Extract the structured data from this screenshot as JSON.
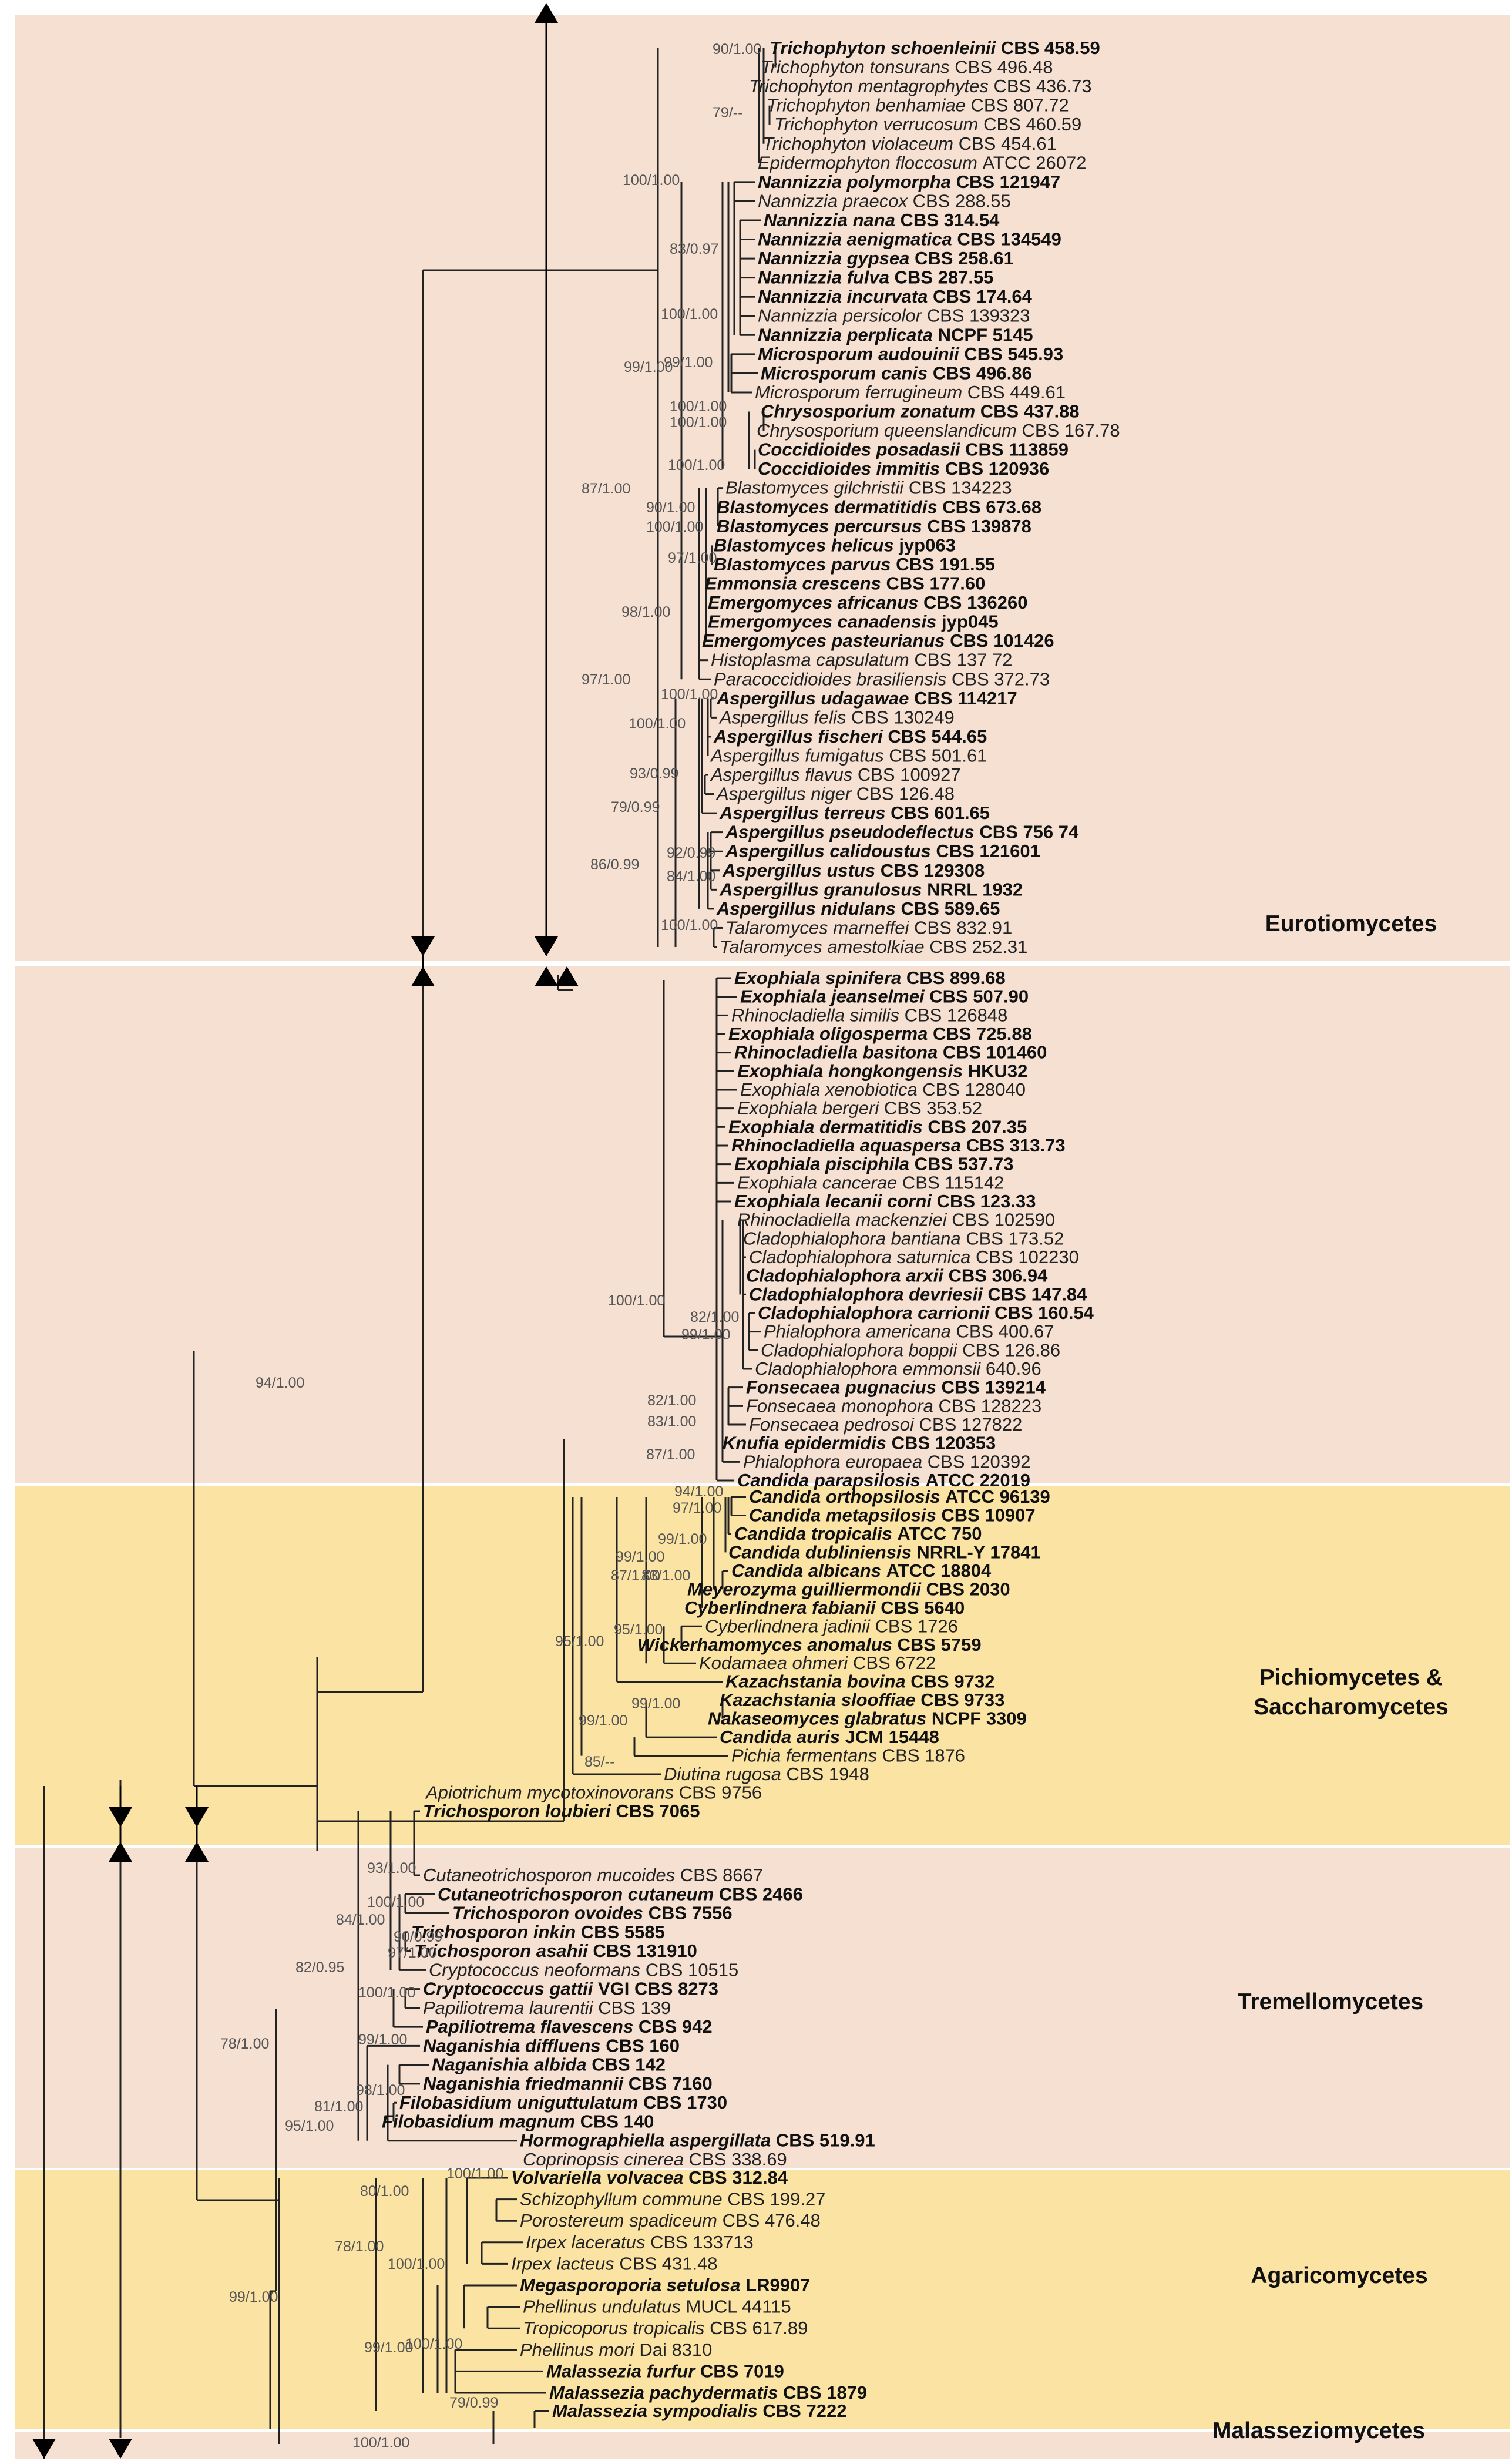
{
  "figure": {
    "type": "phylogenetic-tree",
    "colors": {
      "band_pink": "#f5e0d2",
      "band_yellow": "#fbe3a3",
      "line": "#222222"
    }
  },
  "clades": [
    {
      "name": "Eurotiomycetes",
      "color": "pink"
    },
    {
      "name": "Pichiomycetes &",
      "name2": "Saccharomycetes",
      "color": "yellow"
    },
    {
      "name": "Tremellomycetes",
      "color": "pink"
    },
    {
      "name": "Agaricomycetes",
      "color": "yellow"
    },
    {
      "name": "Malasseziomycetes",
      "color": "pink"
    }
  ],
  "taxa": [
    {
      "genus": "Trichophyton schoenleinii",
      "strain": "CBS 458.59",
      "bold": true
    },
    {
      "genus": "Trichophyton tonsurans",
      "strain": "CBS 496.48",
      "bold": false
    },
    {
      "genus": "Trichophyton mentagrophytes",
      "strain": "CBS 436.73",
      "bold": false
    },
    {
      "genus": "Trichophyton benhamiae",
      "strain": "CBS 807.72",
      "bold": false
    },
    {
      "genus": "Trichophyton verrucosum",
      "strain": "CBS 460.59",
      "bold": false
    },
    {
      "genus": "Trichophyton violaceum",
      "strain": "CBS 454.61",
      "bold": false
    },
    {
      "genus": "Epidermophyton floccosum",
      "strain": "ATCC 26072",
      "bold": false
    },
    {
      "genus": "Nannizzia polymorpha",
      "strain": "CBS 121947",
      "bold": true
    },
    {
      "genus": "Nannizzia praecox",
      "strain": "CBS 288.55",
      "bold": false
    },
    {
      "genus": "Nannizzia nana",
      "strain": "CBS 314.54",
      "bold": true
    },
    {
      "genus": "Nannizzia aenigmatica",
      "strain": "CBS 134549",
      "bold": true
    },
    {
      "genus": "Nannizzia gypsea",
      "strain": "CBS 258.61",
      "bold": true
    },
    {
      "genus": "Nannizzia fulva",
      "strain": "CBS 287.55",
      "bold": true
    },
    {
      "genus": "Nannizzia incurvata",
      "strain": "CBS 174.64",
      "bold": true
    },
    {
      "genus": "Nannizzia persicolor",
      "strain": "CBS 139323",
      "bold": false
    },
    {
      "genus": "Nannizzia perplicata",
      "strain": "NCPF 5145",
      "bold": true
    },
    {
      "genus": "Microsporum audouinii",
      "strain": "CBS 545.93",
      "bold": true
    },
    {
      "genus": "Microsporum canis",
      "strain": "CBS 496.86",
      "bold": true
    },
    {
      "genus": "Microsporum ferrugineum",
      "strain": "CBS 449.61",
      "bold": false
    },
    {
      "genus": "Chrysosporium zonatum",
      "strain": "CBS 437.88",
      "bold": true
    },
    {
      "genus": "Chrysosporium queenslandicum",
      "strain": "CBS 167.78",
      "bold": false
    },
    {
      "genus": "Coccidioides posadasii",
      "strain": "CBS 113859",
      "bold": true
    },
    {
      "genus": "Coccidioides immitis",
      "strain": "CBS 120936",
      "bold": true
    },
    {
      "genus": "Blastomyces gilchristii",
      "strain": "CBS 134223",
      "bold": false
    },
    {
      "genus": "Blastomyces dermatitidis",
      "strain": "CBS 673.68",
      "bold": true
    },
    {
      "genus": "Blastomyces percursus",
      "strain": "CBS 139878",
      "bold": true
    },
    {
      "genus": "Blastomyces helicus",
      "strain": "jyp063",
      "bold": true
    },
    {
      "genus": "Blastomyces parvus",
      "strain": "CBS 191.55",
      "bold": true
    },
    {
      "genus": "Emmonsia crescens",
      "strain": "CBS 177.60",
      "bold": true
    },
    {
      "genus": "Emergomyces africanus",
      "strain": "CBS 136260",
      "bold": true
    },
    {
      "genus": "Emergomyces canadensis",
      "strain": "jyp045",
      "bold": true
    },
    {
      "genus": "Emergomyces pasteurianus",
      "strain": "CBS 101426",
      "bold": true
    },
    {
      "genus": "Histoplasma capsulatum",
      "strain": "CBS 137 72",
      "bold": false
    },
    {
      "genus": "Paracoccidioides brasiliensis",
      "strain": "CBS 372.73",
      "bold": false
    },
    {
      "genus": "Aspergillus udagawae",
      "strain": "CBS 114217",
      "bold": true
    },
    {
      "genus": "Aspergillus felis",
      "strain": "CBS 130249",
      "bold": false
    },
    {
      "genus": "Aspergillus fischeri",
      "strain": "CBS 544.65",
      "bold": true
    },
    {
      "genus": "Aspergillus fumigatus",
      "strain": "CBS 501.61",
      "bold": false
    },
    {
      "genus": "Aspergillus flavus",
      "strain": "CBS 100927",
      "bold": false
    },
    {
      "genus": "Aspergillus niger",
      "strain": "CBS 126.48",
      "bold": false
    },
    {
      "genus": "Aspergillus terreus",
      "strain": "CBS 601.65",
      "bold": true
    },
    {
      "genus": "Aspergillus pseudodeflectus",
      "strain": "CBS 756 74",
      "bold": true
    },
    {
      "genus": "Aspergillus calidoustus",
      "strain": "CBS 121601",
      "bold": true
    },
    {
      "genus": "Aspergillus ustus",
      "strain": "CBS 129308",
      "bold": true
    },
    {
      "genus": "Aspergillus granulosus",
      "strain": "NRRL 1932",
      "bold": true
    },
    {
      "genus": "Aspergillus nidulans",
      "strain": "CBS 589.65",
      "bold": true
    },
    {
      "genus": "Talaromyces marneffei",
      "strain": "CBS 832.91",
      "bold": false
    },
    {
      "genus": "Talaromyces amestolkiae",
      "strain": "CBS 252.31",
      "bold": false
    },
    {
      "genus": "Exophiala spinifera",
      "strain": "CBS 899.68",
      "bold": true
    },
    {
      "genus": "Exophiala jeanselmei",
      "strain": "CBS 507.90",
      "bold": true
    },
    {
      "genus": "Rhinocladiella similis",
      "strain": "CBS 126848",
      "bold": false
    },
    {
      "genus": "Exophiala oligosperma",
      "strain": "CBS 725.88",
      "bold": true
    },
    {
      "genus": "Rhinocladiella basitona",
      "strain": "CBS 101460",
      "bold": true
    },
    {
      "genus": "Exophiala hongkongensis",
      "strain": "HKU32",
      "bold": true
    },
    {
      "genus": "Exophiala xenobiotica",
      "strain": "CBS 128040",
      "bold": false
    },
    {
      "genus": "Exophiala bergeri",
      "strain": "CBS 353.52",
      "bold": false
    },
    {
      "genus": "Exophiala dermatitidis",
      "strain": "CBS 207.35",
      "bold": true
    },
    {
      "genus": "Rhinocladiella aquaspersa",
      "strain": "CBS 313.73",
      "bold": true
    },
    {
      "genus": "Exophiala pisciphila",
      "strain": "CBS 537.73",
      "bold": true
    },
    {
      "genus": "Exophiala cancerae",
      "strain": "CBS 115142",
      "bold": false
    },
    {
      "genus": "Exophiala lecanii corni",
      "strain": "CBS 123.33",
      "bold": true
    },
    {
      "genus": "Rhinocladiella mackenziei",
      "strain": "CBS 102590",
      "bold": false
    },
    {
      "genus": "Cladophialophora bantiana",
      "strain": "CBS 173.52",
      "bold": false
    },
    {
      "genus": "Cladophialophora saturnica",
      "strain": "CBS 102230",
      "bold": false
    },
    {
      "genus": "Cladophialophora arxii",
      "strain": "CBS 306.94",
      "bold": true
    },
    {
      "genus": "Cladophialophora devriesii",
      "strain": "CBS 147.84",
      "bold": true
    },
    {
      "genus": "Cladophialophora carrionii",
      "strain": "CBS 160.54",
      "bold": true
    },
    {
      "genus": "Phialophora americana",
      "strain": "CBS 400.67",
      "bold": false
    },
    {
      "genus": "Cladophialophora boppii",
      "strain": "CBS 126.86",
      "bold": false
    },
    {
      "genus": "Cladophialophora emmonsii",
      "strain": "640.96",
      "bold": false
    },
    {
      "genus": "Fonsecaea pugnacius",
      "strain": "CBS 139214",
      "bold": true
    },
    {
      "genus": "Fonsecaea monophora",
      "strain": "CBS 128223",
      "bold": false
    },
    {
      "genus": "Fonsecaea pedrosoi",
      "strain": "CBS 127822",
      "bold": false
    },
    {
      "genus": "Knufia epidermidis",
      "strain": "CBS 120353",
      "bold": true
    },
    {
      "genus": "Phialophora europaea",
      "strain": "CBS 120392",
      "bold": false
    },
    {
      "genus": "Candida parapsilosis",
      "strain": "ATCC 22019",
      "bold": true
    },
    {
      "genus": "Candida orthopsilosis",
      "strain": "ATCC 96139",
      "bold": true
    },
    {
      "genus": "Candida metapsilosis",
      "strain": "CBS 10907",
      "bold": true
    },
    {
      "genus": "Candida tropicalis",
      "strain": "ATCC 750",
      "bold": true
    },
    {
      "genus": "Candida dubliniensis",
      "strain": "NRRL-Y 17841",
      "bold": true
    },
    {
      "genus": "Candida albicans",
      "strain": "ATCC 18804",
      "bold": true
    },
    {
      "genus": "Meyerozyma guilliermondii",
      "strain": "CBS 2030",
      "bold": true
    },
    {
      "genus": "Cyberlindnera fabianii",
      "strain": "CBS 5640",
      "bold": true
    },
    {
      "genus": "Cyberlindnera jadinii",
      "strain": "CBS 1726",
      "bold": false
    },
    {
      "genus": "Wickerhamomyces anomalus",
      "strain": "CBS 5759",
      "bold": true
    },
    {
      "genus": "Kodamaea ohmeri",
      "strain": "CBS 6722",
      "bold": false
    },
    {
      "genus": "Kazachstania bovina",
      "strain": "CBS 9732",
      "bold": true
    },
    {
      "genus": "Kazachstania slooffiae",
      "strain": "CBS 9733",
      "bold": true
    },
    {
      "genus": "Nakaseomyces glabratus",
      "strain": "NCPF 3309",
      "bold": true
    },
    {
      "genus": "Candida auris",
      "strain": "JCM 15448",
      "bold": true
    },
    {
      "genus": "Pichia fermentans",
      "strain": "CBS 1876",
      "bold": false
    },
    {
      "genus": "Diutina rugosa",
      "strain": "CBS 1948",
      "bold": false
    },
    {
      "genus": "Apiotrichum mycotoxinovorans",
      "strain": "CBS 9756",
      "bold": false
    },
    {
      "genus": "Trichosporon loubieri",
      "strain": "CBS 7065",
      "bold": true
    },
    {
      "genus": "Cutaneotrichosporon mucoides",
      "strain": "CBS 8667",
      "bold": false
    },
    {
      "genus": "Cutaneotrichosporon cutaneum",
      "strain": "CBS 2466",
      "bold": true
    },
    {
      "genus": "Trichosporon ovoides",
      "strain": "CBS 7556",
      "bold": true
    },
    {
      "genus": "Trichosporon inkin",
      "strain": "CBS 5585",
      "bold": true
    },
    {
      "genus": "Trichosporon asahii",
      "strain": "CBS 131910",
      "bold": true
    },
    {
      "genus": "Cryptococcus neoformans",
      "strain": "CBS 10515",
      "bold": false
    },
    {
      "genus": "Cryptococcus gattii",
      "strain": "VGI CBS 8273",
      "bold": true
    },
    {
      "genus": "Papiliotrema laurentii",
      "strain": "CBS 139",
      "bold": false
    },
    {
      "genus": "Papiliotrema flavescens",
      "strain": "CBS 942",
      "bold": true
    },
    {
      "genus": "Naganishia diffluens",
      "strain": "CBS 160",
      "bold": true
    },
    {
      "genus": "Naganishia albida",
      "strain": "CBS 142",
      "bold": true
    },
    {
      "genus": "Naganishia friedmannii",
      "strain": "CBS 7160",
      "bold": true
    },
    {
      "genus": "Filobasidium uniguttulatum",
      "strain": "CBS 1730",
      "bold": true
    },
    {
      "genus": "Filobasidium magnum",
      "strain": "CBS 140",
      "bold": true
    },
    {
      "genus": "Hormographiella aspergillata",
      "strain": "CBS 519.91",
      "bold": true
    },
    {
      "genus": "Coprinopsis cinerea",
      "strain": "CBS 338.69",
      "bold": false
    },
    {
      "genus": "Volvariella volvacea",
      "strain": "CBS 312.84",
      "bold": true
    },
    {
      "genus": "Schizophyllum commune",
      "strain": "CBS 199.27",
      "bold": false
    },
    {
      "genus": "Porostereum spadiceum",
      "strain": "CBS 476.48",
      "bold": false
    },
    {
      "genus": "Irpex laceratus",
      "strain": "CBS 133713",
      "bold": false
    },
    {
      "genus": "Irpex lacteus",
      "strain": "CBS 431.48",
      "bold": false
    },
    {
      "genus": "Megasporoporia setulosa",
      "strain": "LR9907",
      "bold": true
    },
    {
      "genus": "Phellinus undulatus",
      "strain": "MUCL 44115",
      "bold": false
    },
    {
      "genus": "Tropicoporus tropicalis",
      "strain": "CBS 617.89",
      "bold": false
    },
    {
      "genus": "Phellinus mori",
      "strain": "Dai 8310",
      "bold": false
    },
    {
      "genus": "Malassezia furfur",
      "strain": "CBS 7019",
      "bold": true
    },
    {
      "genus": "Malassezia pachydermatis",
      "strain": "CBS 1879",
      "bold": true
    },
    {
      "genus": "Malassezia sympodialis",
      "strain": "CBS 7222",
      "bold": true
    }
  ],
  "support_values": [
    "90/1.00",
    "79/--",
    "100/1.00",
    "83/0.97",
    "100/1.00",
    "99/1.00",
    "99/1.00",
    "100/1.00",
    "100/1.00",
    "100/1.00",
    "87/1.00",
    "100/1.00",
    "90/1.00",
    "97/1.00",
    "98/1.00",
    "97/1.00",
    "100/1.00",
    "100/1.00",
    "93/0.99",
    "79/0.99",
    "92/0.99",
    "86/0.99",
    "84/1.00",
    "100/1.00",
    "100/1.00",
    "82/1.00",
    "99/1.00",
    "82/1.00",
    "83/1.00",
    "87/1.00",
    "94/1.00",
    "94/1.00",
    "97/1.00",
    "99/1.00",
    "99/1.00",
    "87/1.00",
    "83/1.00",
    "95/1.00",
    "95/1.00",
    "99/1.00",
    "99/1.00",
    "85/--",
    "93/1.00",
    "100/1.00",
    "84/1.00",
    "90/0.99",
    "97/1.00",
    "82/0.95",
    "100/1.00",
    "99/1.00",
    "78/1.00",
    "98/1.00",
    "81/1.00",
    "95/1.00",
    "100/1.00",
    "80/1.00",
    "78/1.00",
    "100/1.00",
    "99/1.00",
    "100/1.00",
    "99/1.00",
    "79/0.99",
    "100/1.00"
  ]
}
